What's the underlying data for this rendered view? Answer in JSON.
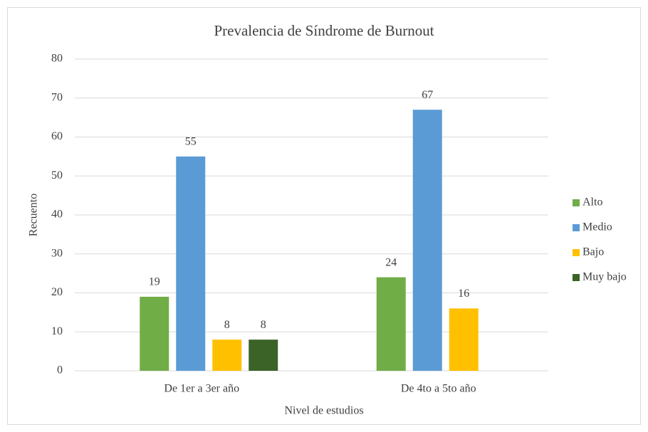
{
  "chart_data": {
    "type": "bar",
    "title": "Prevalencia de Síndrome de Burnout",
    "x_label": "Nivel de estudios",
    "y_label": "Recuento",
    "categories": [
      "De 1er a 3er año",
      "De 4to a 5to año"
    ],
    "series": [
      {
        "name": "Alto",
        "color": "#70ad47",
        "values": [
          19,
          24
        ]
      },
      {
        "name": "Medio",
        "color": "#5b9bd5",
        "values": [
          55,
          67
        ]
      },
      {
        "name": "Bajo",
        "color": "#ffc000",
        "values": [
          8,
          16
        ]
      },
      {
        "name": "Muy bajo",
        "color": "#3b6328",
        "values": [
          8,
          null
        ]
      }
    ],
    "ylim": [
      0,
      80
    ],
    "yticks": [
      0,
      10,
      20,
      30,
      40,
      50,
      60,
      70,
      80
    ],
    "grid": true,
    "legend": "right"
  }
}
